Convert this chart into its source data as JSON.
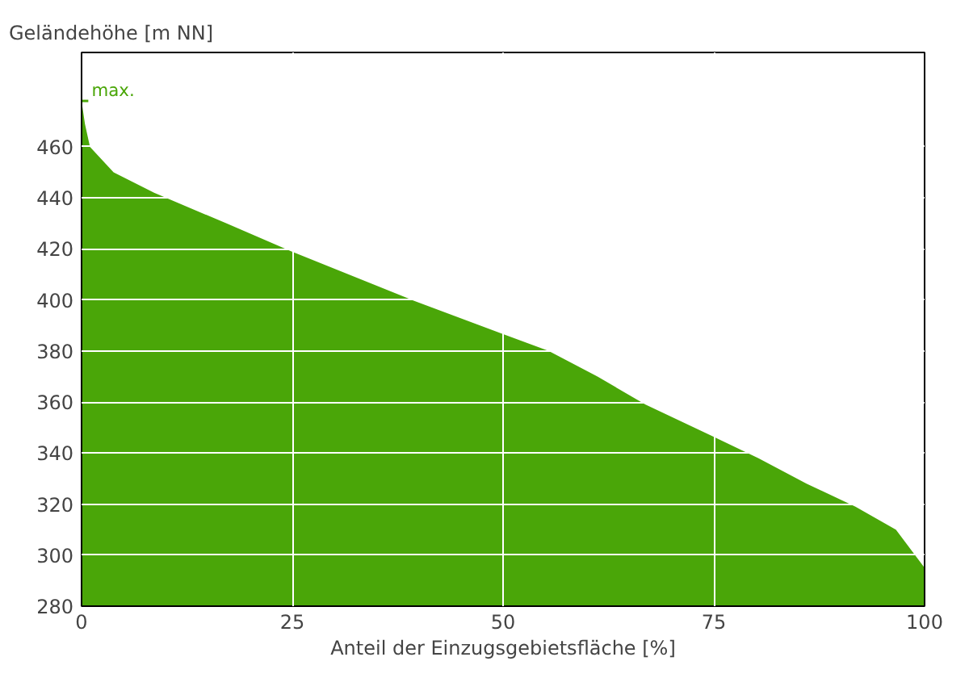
{
  "chart_data": {
    "type": "area",
    "ylabel": "Geländehöhe [m NN]",
    "xlabel": "Anteil der Einzugsgebietsfläche [%]",
    "x": [
      0,
      0.4,
      1,
      3.8,
      8.6,
      17.2,
      24.9,
      39.2,
      49.7,
      55.4,
      61.2,
      66.9,
      74.6,
      80.3,
      86,
      91.8,
      96.6,
      100
    ],
    "series": [
      {
        "color": "#4aa608",
        "values": [
          478,
          469,
          460,
          450,
          442,
          430,
          419,
          400,
          387,
          380,
          370,
          359,
          347,
          338,
          328,
          319,
          310,
          295
        ]
      }
    ],
    "xlim": [
      0,
      100
    ],
    "xticks": [
      0,
      25,
      50,
      75,
      100
    ],
    "ylim": [
      280,
      497
    ],
    "yticks": [
      280,
      300,
      320,
      340,
      360,
      380,
      400,
      420,
      440,
      460
    ],
    "grid": true,
    "annotations": [
      {
        "text": "max.",
        "x": 0,
        "y": 478
      }
    ]
  }
}
